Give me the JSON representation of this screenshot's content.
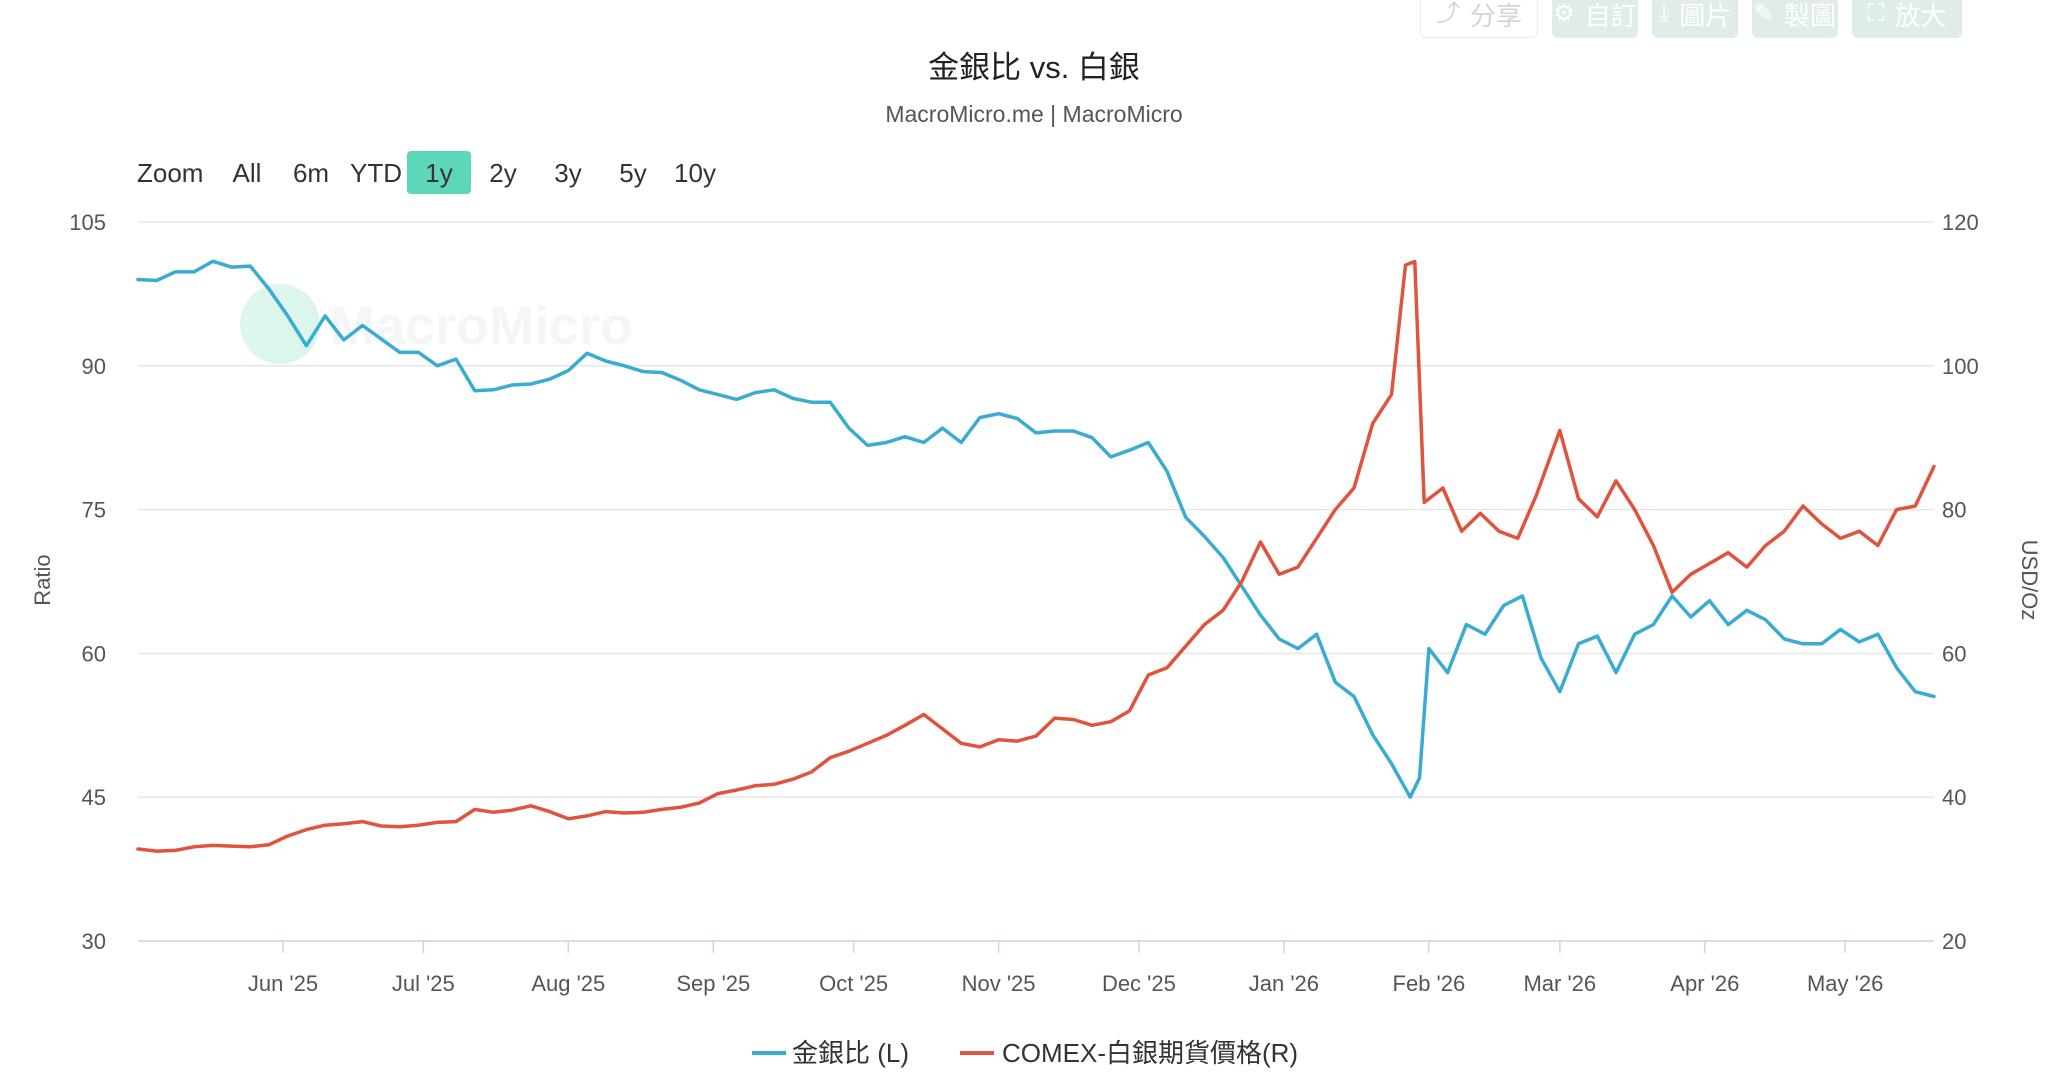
{
  "toolbar": {
    "share_label": "分享",
    "customize_label": "自訂",
    "image_label": "圖片",
    "draw_label": "製圖",
    "enlarge_label": "放大"
  },
  "watermark": "MacroMicro",
  "zoom": {
    "label": "Zoom",
    "options": [
      "All",
      "6m",
      "YTD",
      "1y",
      "2y",
      "3y",
      "5y",
      "10y"
    ],
    "selected": "1y"
  },
  "colors": {
    "ratio": "#3aabd2",
    "silver": "#e0533d",
    "zoom_selected": "#5ed6b8",
    "grid": "#e6e6e6"
  },
  "chart_data": {
    "type": "line",
    "title": "金銀比 vs. 白銀",
    "subtitle": "MacroMicro.me | MacroMicro",
    "x_range": [
      "2025-05-01",
      "2026-05-20"
    ],
    "x_ticks": [
      {
        "date": "2025-06-01",
        "label": "Jun '25"
      },
      {
        "date": "2025-07-01",
        "label": "Jul '25"
      },
      {
        "date": "2025-08-01",
        "label": "Aug '25"
      },
      {
        "date": "2025-09-01",
        "label": "Sep '25"
      },
      {
        "date": "2025-10-01",
        "label": "Oct '25"
      },
      {
        "date": "2025-11-01",
        "label": "Nov '25"
      },
      {
        "date": "2025-12-01",
        "label": "Dec '25"
      },
      {
        "date": "2026-01-01",
        "label": "Jan '26"
      },
      {
        "date": "2026-02-01",
        "label": "Feb '26"
      },
      {
        "date": "2026-03-01",
        "label": "Mar '26"
      },
      {
        "date": "2026-04-01",
        "label": "Apr '26"
      },
      {
        "date": "2026-05-01",
        "label": "May '26"
      }
    ],
    "y_left": {
      "label": "Ratio",
      "min": 30,
      "max": 105,
      "ticks": [
        30,
        45,
        60,
        75,
        90,
        105
      ]
    },
    "y_right": {
      "label": "USD/Oz",
      "min": 20,
      "max": 120,
      "ticks": [
        20,
        40,
        60,
        80,
        100,
        120
      ]
    },
    "grid": true,
    "legend": "bottom-center",
    "series": [
      {
        "name": "金銀比 (L)",
        "axis": "left",
        "points": [
          [
            "2025-05-01",
            99.0
          ],
          [
            "2025-05-05",
            98.9
          ],
          [
            "2025-05-09",
            99.8
          ],
          [
            "2025-05-13",
            99.8
          ],
          [
            "2025-05-17",
            100.9
          ],
          [
            "2025-05-21",
            100.3
          ],
          [
            "2025-05-25",
            100.4
          ],
          [
            "2025-05-29",
            98.0
          ],
          [
            "2025-06-02",
            95.2
          ],
          [
            "2025-06-06",
            92.1
          ],
          [
            "2025-06-10",
            95.2
          ],
          [
            "2025-06-14",
            92.7
          ],
          [
            "2025-06-18",
            94.2
          ],
          [
            "2025-06-22",
            92.8
          ],
          [
            "2025-06-26",
            91.4
          ],
          [
            "2025-06-30",
            91.4
          ],
          [
            "2025-07-04",
            90.0
          ],
          [
            "2025-07-08",
            90.7
          ],
          [
            "2025-07-12",
            87.4
          ],
          [
            "2025-07-16",
            87.5
          ],
          [
            "2025-07-20",
            88.0
          ],
          [
            "2025-07-24",
            88.1
          ],
          [
            "2025-07-28",
            88.6
          ],
          [
            "2025-08-01",
            89.5
          ],
          [
            "2025-08-05",
            91.3
          ],
          [
            "2025-08-09",
            90.5
          ],
          [
            "2025-08-13",
            90.0
          ],
          [
            "2025-08-17",
            89.4
          ],
          [
            "2025-08-21",
            89.3
          ],
          [
            "2025-08-25",
            88.5
          ],
          [
            "2025-08-29",
            87.5
          ],
          [
            "2025-09-02",
            87.0
          ],
          [
            "2025-09-06",
            86.5
          ],
          [
            "2025-09-10",
            87.2
          ],
          [
            "2025-09-14",
            87.5
          ],
          [
            "2025-09-18",
            86.6
          ],
          [
            "2025-09-22",
            86.2
          ],
          [
            "2025-09-26",
            86.2
          ],
          [
            "2025-09-30",
            83.5
          ],
          [
            "2025-10-04",
            81.7
          ],
          [
            "2025-10-08",
            82.0
          ],
          [
            "2025-10-12",
            82.6
          ],
          [
            "2025-10-16",
            82.0
          ],
          [
            "2025-10-20",
            83.5
          ],
          [
            "2025-10-24",
            82.0
          ],
          [
            "2025-10-28",
            84.6
          ],
          [
            "2025-11-01",
            85.0
          ],
          [
            "2025-11-05",
            84.5
          ],
          [
            "2025-11-09",
            83.0
          ],
          [
            "2025-11-13",
            83.2
          ],
          [
            "2025-11-17",
            83.2
          ],
          [
            "2025-11-21",
            82.5
          ],
          [
            "2025-11-25",
            80.5
          ],
          [
            "2025-11-29",
            81.2
          ],
          [
            "2025-12-03",
            82.0
          ],
          [
            "2025-12-07",
            79.0
          ],
          [
            "2025-12-11",
            74.2
          ],
          [
            "2025-12-15",
            72.2
          ],
          [
            "2025-12-19",
            70.0
          ],
          [
            "2025-12-23",
            67.0
          ],
          [
            "2025-12-27",
            64.0
          ],
          [
            "2025-12-31",
            61.5
          ],
          [
            "2026-01-04",
            60.5
          ],
          [
            "2026-01-08",
            62.0
          ],
          [
            "2026-01-12",
            57.0
          ],
          [
            "2026-01-16",
            55.5
          ],
          [
            "2026-01-20",
            51.5
          ],
          [
            "2026-01-24",
            48.5
          ],
          [
            "2026-01-28",
            45.0
          ],
          [
            "2026-01-30",
            47.0
          ],
          [
            "2026-02-01",
            60.5
          ],
          [
            "2026-02-05",
            58.0
          ],
          [
            "2026-02-09",
            63.0
          ],
          [
            "2026-02-13",
            62.0
          ],
          [
            "2026-02-17",
            65.0
          ],
          [
            "2026-02-21",
            66.0
          ],
          [
            "2026-02-25",
            59.5
          ],
          [
            "2026-03-01",
            56.0
          ],
          [
            "2026-03-05",
            61.0
          ],
          [
            "2026-03-09",
            61.8
          ],
          [
            "2026-03-13",
            58.0
          ],
          [
            "2026-03-17",
            62.0
          ],
          [
            "2026-03-21",
            63.0
          ],
          [
            "2026-03-25",
            66.0
          ],
          [
            "2026-03-29",
            63.8
          ],
          [
            "2026-04-02",
            65.5
          ],
          [
            "2026-04-06",
            63.0
          ],
          [
            "2026-04-10",
            64.5
          ],
          [
            "2026-04-14",
            63.5
          ],
          [
            "2026-04-18",
            61.5
          ],
          [
            "2026-04-22",
            61.0
          ],
          [
            "2026-04-26",
            61.0
          ],
          [
            "2026-04-30",
            62.5
          ],
          [
            "2026-05-04",
            61.2
          ],
          [
            "2026-05-08",
            62.0
          ],
          [
            "2026-05-12",
            58.5
          ],
          [
            "2026-05-16",
            56.0
          ],
          [
            "2026-05-20",
            55.5
          ]
        ]
      },
      {
        "name": "COMEX-白銀期貨價格(R)",
        "axis": "right",
        "points": [
          [
            "2025-05-01",
            32.8
          ],
          [
            "2025-05-05",
            32.5
          ],
          [
            "2025-05-09",
            32.6
          ],
          [
            "2025-05-13",
            33.1
          ],
          [
            "2025-05-17",
            33.3
          ],
          [
            "2025-05-21",
            33.2
          ],
          [
            "2025-05-25",
            33.1
          ],
          [
            "2025-05-29",
            33.4
          ],
          [
            "2025-06-02",
            34.6
          ],
          [
            "2025-06-06",
            35.5
          ],
          [
            "2025-06-10",
            36.1
          ],
          [
            "2025-06-14",
            36.3
          ],
          [
            "2025-06-18",
            36.6
          ],
          [
            "2025-06-22",
            36.0
          ],
          [
            "2025-06-26",
            35.9
          ],
          [
            "2025-06-30",
            36.1
          ],
          [
            "2025-07-04",
            36.5
          ],
          [
            "2025-07-08",
            36.6
          ],
          [
            "2025-07-12",
            38.3
          ],
          [
            "2025-07-16",
            37.9
          ],
          [
            "2025-07-20",
            38.2
          ],
          [
            "2025-07-24",
            38.8
          ],
          [
            "2025-07-28",
            38.0
          ],
          [
            "2025-08-01",
            37.0
          ],
          [
            "2025-08-05",
            37.4
          ],
          [
            "2025-08-09",
            38.0
          ],
          [
            "2025-08-13",
            37.8
          ],
          [
            "2025-08-17",
            37.9
          ],
          [
            "2025-08-21",
            38.3
          ],
          [
            "2025-08-25",
            38.6
          ],
          [
            "2025-08-29",
            39.2
          ],
          [
            "2025-09-02",
            40.5
          ],
          [
            "2025-09-06",
            41.0
          ],
          [
            "2025-09-10",
            41.6
          ],
          [
            "2025-09-14",
            41.8
          ],
          [
            "2025-09-18",
            42.5
          ],
          [
            "2025-09-22",
            43.5
          ],
          [
            "2025-09-26",
            45.5
          ],
          [
            "2025-09-30",
            46.4
          ],
          [
            "2025-10-04",
            47.5
          ],
          [
            "2025-10-08",
            48.6
          ],
          [
            "2025-10-12",
            50.0
          ],
          [
            "2025-10-16",
            51.5
          ],
          [
            "2025-10-20",
            49.5
          ],
          [
            "2025-10-24",
            47.5
          ],
          [
            "2025-10-28",
            47.0
          ],
          [
            "2025-11-01",
            48.0
          ],
          [
            "2025-11-05",
            47.8
          ],
          [
            "2025-11-09",
            48.5
          ],
          [
            "2025-11-13",
            51.0
          ],
          [
            "2025-11-17",
            50.8
          ],
          [
            "2025-11-21",
            50.0
          ],
          [
            "2025-11-25",
            50.5
          ],
          [
            "2025-11-29",
            52.0
          ],
          [
            "2025-12-03",
            57.0
          ],
          [
            "2025-12-07",
            58.0
          ],
          [
            "2025-12-11",
            61.0
          ],
          [
            "2025-12-15",
            64.0
          ],
          [
            "2025-12-19",
            66.0
          ],
          [
            "2025-12-23",
            70.0
          ],
          [
            "2025-12-27",
            75.5
          ],
          [
            "2025-12-31",
            71.0
          ],
          [
            "2026-01-04",
            72.0
          ],
          [
            "2026-01-08",
            76.0
          ],
          [
            "2026-01-12",
            80.0
          ],
          [
            "2026-01-16",
            83.0
          ],
          [
            "2026-01-20",
            92.0
          ],
          [
            "2026-01-24",
            96.0
          ],
          [
            "2026-01-27",
            114.0
          ],
          [
            "2026-01-29",
            114.5
          ],
          [
            "2026-01-31",
            81.0
          ],
          [
            "2026-02-04",
            83.0
          ],
          [
            "2026-02-08",
            77.0
          ],
          [
            "2026-02-12",
            79.5
          ],
          [
            "2026-02-16",
            77.0
          ],
          [
            "2026-02-20",
            76.0
          ],
          [
            "2026-02-24",
            82.0
          ],
          [
            "2026-03-01",
            91.0
          ],
          [
            "2026-03-05",
            81.5
          ],
          [
            "2026-03-09",
            79.0
          ],
          [
            "2026-03-13",
            84.0
          ],
          [
            "2026-03-17",
            80.0
          ],
          [
            "2026-03-21",
            75.0
          ],
          [
            "2026-03-25",
            68.5
          ],
          [
            "2026-03-29",
            71.0
          ],
          [
            "2026-04-02",
            72.5
          ],
          [
            "2026-04-06",
            74.0
          ],
          [
            "2026-04-10",
            72.0
          ],
          [
            "2026-04-14",
            75.0
          ],
          [
            "2026-04-18",
            77.0
          ],
          [
            "2026-04-22",
            80.5
          ],
          [
            "2026-04-26",
            78.0
          ],
          [
            "2026-04-30",
            76.0
          ],
          [
            "2026-05-04",
            77.0
          ],
          [
            "2026-05-08",
            75.0
          ],
          [
            "2026-05-12",
            80.0
          ],
          [
            "2026-05-16",
            80.5
          ],
          [
            "2026-05-20",
            86.0
          ]
        ]
      }
    ]
  }
}
